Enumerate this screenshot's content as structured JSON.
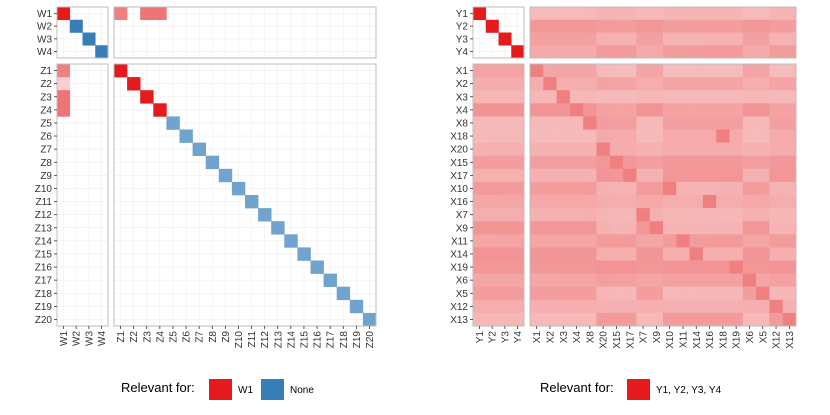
{
  "chart_data": [
    {
      "type": "heatmap",
      "rows_top": [
        "W1",
        "W2",
        "W3",
        "W4"
      ],
      "rows_bottom": [
        "Z1",
        "Z2",
        "Z3",
        "Z4",
        "Z5",
        "Z6",
        "Z7",
        "Z8",
        "Z9",
        "Z10",
        "Z11",
        "Z12",
        "Z13",
        "Z14",
        "Z15",
        "Z16",
        "Z17",
        "Z18",
        "Z19",
        "Z20"
      ],
      "cols_left": [
        "W1",
        "W2",
        "W3",
        "W4"
      ],
      "cols_right": [
        "Z1",
        "Z2",
        "Z3",
        "Z4",
        "Z5",
        "Z6",
        "Z7",
        "Z8",
        "Z9",
        "Z10",
        "Z11",
        "Z12",
        "Z13",
        "Z14",
        "Z15",
        "Z16",
        "Z17",
        "Z18",
        "Z19",
        "Z20"
      ],
      "color_low_red": "#fbe3e3",
      "color_high_red": "#e41a1c",
      "color_low_blue": "#c6dbef",
      "color_high_blue": "#377eb8",
      "cells": [
        {
          "row": "W1",
          "col": "W1",
          "group": "red",
          "value": 1.0
        },
        {
          "row": "W2",
          "col": "W2",
          "group": "blue",
          "value": 1.0
        },
        {
          "row": "W3",
          "col": "W3",
          "group": "blue",
          "value": 1.0
        },
        {
          "row": "W4",
          "col": "W4",
          "group": "blue",
          "value": 1.0
        },
        {
          "row": "W1",
          "col": "Z1",
          "group": "red",
          "value": 0.5
        },
        {
          "row": "W1",
          "col": "Z3",
          "group": "red",
          "value": 0.55
        },
        {
          "row": "W1",
          "col": "Z4",
          "group": "red",
          "value": 0.55
        },
        {
          "row": "Z1",
          "col": "W1",
          "group": "red",
          "value": 0.5
        },
        {
          "row": "Z2",
          "col": "W1",
          "group": "red",
          "value": 0.1
        },
        {
          "row": "Z3",
          "col": "W1",
          "group": "red",
          "value": 0.55
        },
        {
          "row": "Z4",
          "col": "W1",
          "group": "red",
          "value": 0.55
        },
        {
          "row": "Z1",
          "col": "Z1",
          "group": "red",
          "value": 1.0
        },
        {
          "row": "Z2",
          "col": "Z2",
          "group": "red",
          "value": 1.0
        },
        {
          "row": "Z3",
          "col": "Z3",
          "group": "red",
          "value": 1.0
        },
        {
          "row": "Z4",
          "col": "Z4",
          "group": "red",
          "value": 1.0
        },
        {
          "row": "Z5",
          "col": "Z5",
          "group": "blue",
          "value": 0.6
        },
        {
          "row": "Z6",
          "col": "Z6",
          "group": "blue",
          "value": 0.6
        },
        {
          "row": "Z7",
          "col": "Z7",
          "group": "blue",
          "value": 0.6
        },
        {
          "row": "Z8",
          "col": "Z8",
          "group": "blue",
          "value": 0.6
        },
        {
          "row": "Z9",
          "col": "Z9",
          "group": "blue",
          "value": 0.6
        },
        {
          "row": "Z10",
          "col": "Z10",
          "group": "blue",
          "value": 0.6
        },
        {
          "row": "Z11",
          "col": "Z11",
          "group": "blue",
          "value": 0.6
        },
        {
          "row": "Z12",
          "col": "Z12",
          "group": "blue",
          "value": 0.6
        },
        {
          "row": "Z13",
          "col": "Z13",
          "group": "blue",
          "value": 0.6
        },
        {
          "row": "Z14",
          "col": "Z14",
          "group": "blue",
          "value": 0.6
        },
        {
          "row": "Z15",
          "col": "Z15",
          "group": "blue",
          "value": 0.6
        },
        {
          "row": "Z16",
          "col": "Z16",
          "group": "blue",
          "value": 0.6
        },
        {
          "row": "Z17",
          "col": "Z17",
          "group": "blue",
          "value": 0.6
        },
        {
          "row": "Z18",
          "col": "Z18",
          "group": "blue",
          "value": 0.6
        },
        {
          "row": "Z19",
          "col": "Z19",
          "group": "blue",
          "value": 0.6
        },
        {
          "row": "Z20",
          "col": "Z20",
          "group": "blue",
          "value": 0.6
        }
      ],
      "legend": {
        "title": "Relevant for:",
        "items": [
          {
            "label": "W1",
            "color": "#e41a1c"
          },
          {
            "label": "None",
            "color": "#377eb8"
          }
        ]
      }
    },
    {
      "type": "heatmap",
      "rows_top": [
        "Y1",
        "Y2",
        "Y3",
        "Y4"
      ],
      "rows_bottom": [
        "X1",
        "X2",
        "X3",
        "X4",
        "X8",
        "X18",
        "X20",
        "X15",
        "X17",
        "X10",
        "X16",
        "X7",
        "X9",
        "X11",
        "X14",
        "X19",
        "X6",
        "X5",
        "X12",
        "X13"
      ],
      "cols_left": [
        "Y1",
        "Y2",
        "Y3",
        "Y4"
      ],
      "cols_right": [
        "X1",
        "X2",
        "X3",
        "X4",
        "X8",
        "X20",
        "X15",
        "X17",
        "X7",
        "X9",
        "X10",
        "X11",
        "X14",
        "X16",
        "X18",
        "X19",
        "X6",
        "X5",
        "X12",
        "X13"
      ],
      "color_low_red": "#fbe3e3",
      "color_high_red": "#e41a1c",
      "y_diagonal_value": 1.0,
      "y_block_value": 0.28,
      "y_x_block_value": 0.3,
      "x_block_value": 0.3,
      "x_diagonal_value": 0.5,
      "legend": {
        "title": "Relevant for:",
        "items": [
          {
            "label": "Y1, Y2, Y3, Y4",
            "color": "#e41a1c"
          }
        ]
      }
    }
  ]
}
